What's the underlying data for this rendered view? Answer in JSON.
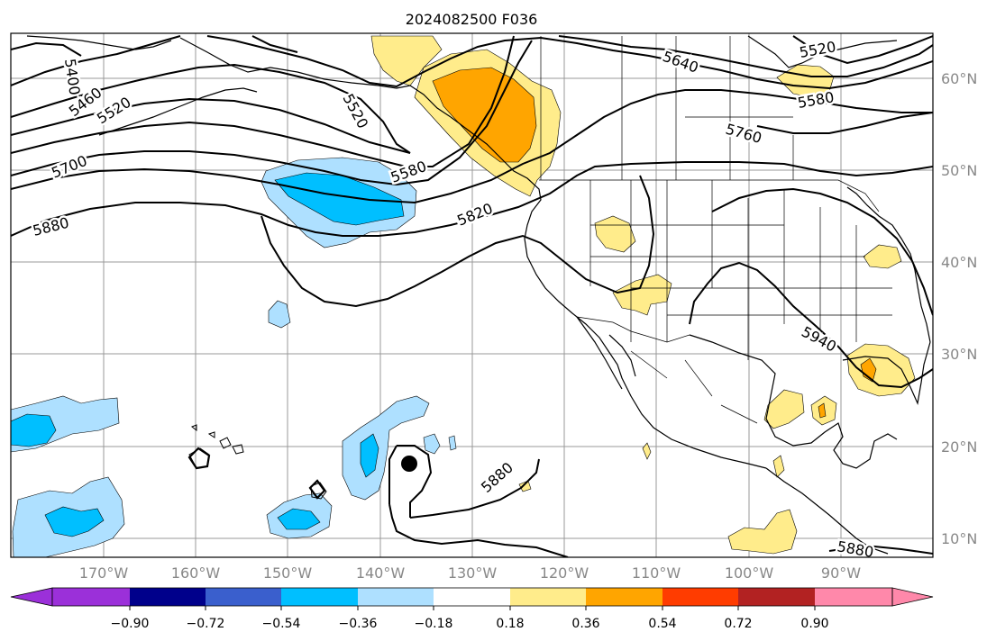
{
  "title": "2024082500 F036",
  "map": {
    "lon_range": [
      -180,
      -80
    ],
    "lat_range": [
      8,
      65
    ],
    "longitude_labels": [
      "170°W",
      "160°W",
      "150°W",
      "140°W",
      "130°W",
      "120°W",
      "110°W",
      "100°W",
      "90°W"
    ],
    "latitude_labels": [
      "60°N",
      "50°N",
      "40°N",
      "30°N",
      "20°N",
      "10°N"
    ],
    "grid": true,
    "contour_labels": [
      "5400",
      "5460",
      "5520",
      "5700",
      "5880",
      "5520",
      "5580",
      "5820",
      "5640",
      "5520",
      "5580",
      "5760",
      "5940",
      "5880",
      "5880"
    ],
    "colors": {
      "positive_light": "#ffec8b",
      "positive_mid": "#ffa500",
      "positive_strong": "#ff3c00",
      "negative_light": "#aee0ff",
      "negative_mid": "#00bfff"
    }
  },
  "colorbar": {
    "ticks": [
      "−0.90",
      "−0.72",
      "−0.54",
      "−0.36",
      "−0.18",
      "0.18",
      "0.36",
      "0.54",
      "0.72",
      "0.90"
    ],
    "colors": [
      "#9b30d9",
      "#00008b",
      "#3a5fcd",
      "#00bfff",
      "#aee0ff",
      "#ffffff",
      "#ffec8b",
      "#ffa500",
      "#ff3c00",
      "#b22222",
      "#ff88aa"
    ]
  }
}
